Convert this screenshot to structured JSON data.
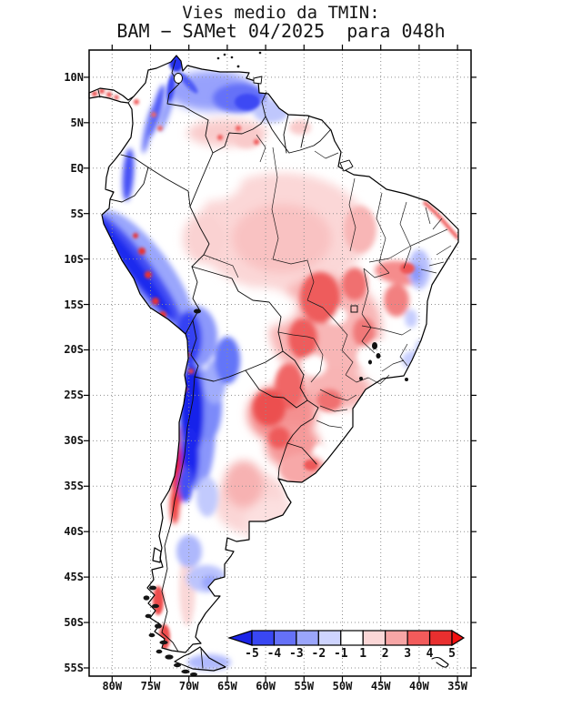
{
  "title": {
    "line1": "Vies medio da TMIN:",
    "line2": "BAM − SAMet 04/2025  para 048h"
  },
  "axes": {
    "lat": {
      "labels": [
        "10N",
        "5N",
        "EQ",
        "5S",
        "10S",
        "15S",
        "20S",
        "25S",
        "30S",
        "35S",
        "40S",
        "45S",
        "50S",
        "55S"
      ]
    },
    "lon": {
      "labels": [
        "80W",
        "75W",
        "70W",
        "65W",
        "60W",
        "55W",
        "50W",
        "45W",
        "40W",
        "35W"
      ]
    }
  },
  "colorbar": {
    "tick_labels": [
      "-5",
      "-4",
      "-3",
      "-2",
      "-1",
      "1",
      "2",
      "3",
      "4",
      "5"
    ],
    "arrow_left_color": "#1b24e8",
    "arrow_right_color": "#f31111",
    "segment_colors": [
      "#3947f3",
      "#6571f8",
      "#9aa5fb",
      "#ced4fe",
      "#ffffff",
      "#fbd7d7",
      "#f7a6a6",
      "#f25b5b",
      "#e92f2f"
    ]
  },
  "map": {
    "region_label": "South America",
    "grid_color": "#8f8f8f",
    "coastline_color": "#000000"
  }
}
